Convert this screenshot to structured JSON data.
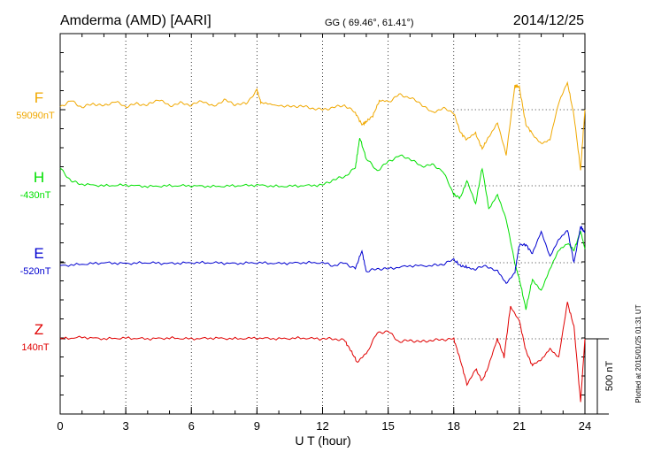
{
  "header": {
    "station": "Amderma (AMD)  [AARI]",
    "coords": "GG ( 69.46°,  61.41°)",
    "date": "2014/12/25"
  },
  "footer": {
    "plotted": "Plotted at 2015/01/25 01:31  UT"
  },
  "chart_data": {
    "type": "line",
    "xlabel": "U T (hour)",
    "xlim": [
      0,
      24
    ],
    "xticks": [
      "0",
      "3",
      "6",
      "9",
      "12",
      "15",
      "18",
      "21",
      "24"
    ],
    "scale_bar": {
      "label": "500 nT",
      "value": 500
    },
    "grid": true,
    "series": [
      {
        "name": "F",
        "baseline_label": "59090nT",
        "color": "#f0a800",
        "points": [
          [
            0,
            20
          ],
          [
            0.5,
            60
          ],
          [
            1,
            15
          ],
          [
            1.5,
            40
          ],
          [
            2,
            25
          ],
          [
            2.5,
            55
          ],
          [
            3,
            20
          ],
          [
            3.5,
            40
          ],
          [
            4,
            30
          ],
          [
            4.5,
            70
          ],
          [
            5,
            25
          ],
          [
            5.5,
            45
          ],
          [
            6,
            30
          ],
          [
            6.5,
            60
          ],
          [
            7,
            20
          ],
          [
            7.5,
            65
          ],
          [
            8,
            35
          ],
          [
            8.5,
            40
          ],
          [
            9,
            130
          ],
          [
            9.2,
            40
          ],
          [
            10,
            30
          ],
          [
            10.5,
            20
          ],
          [
            11,
            25
          ],
          [
            11.5,
            10
          ],
          [
            12,
            0
          ],
          [
            12.5,
            15
          ],
          [
            13,
            30
          ],
          [
            13.5,
            -20
          ],
          [
            13.8,
            -100
          ],
          [
            14,
            -80
          ],
          [
            14.3,
            -40
          ],
          [
            14.6,
            60
          ],
          [
            15,
            50
          ],
          [
            15.5,
            100
          ],
          [
            16,
            80
          ],
          [
            16.5,
            40
          ],
          [
            17,
            -20
          ],
          [
            17.5,
            10
          ],
          [
            18,
            -20
          ],
          [
            18.3,
            -150
          ],
          [
            18.6,
            -200
          ],
          [
            19,
            -160
          ],
          [
            19.3,
            -260
          ],
          [
            19.6,
            -180
          ],
          [
            20,
            -80
          ],
          [
            20.4,
            -300
          ],
          [
            20.8,
            160
          ],
          [
            21,
            150
          ],
          [
            21.3,
            -100
          ],
          [
            21.6,
            -160
          ],
          [
            22,
            -220
          ],
          [
            22.4,
            -200
          ],
          [
            22.8,
            40
          ],
          [
            23.2,
            180
          ],
          [
            23.5,
            -40
          ],
          [
            23.8,
            -400
          ],
          [
            24,
            0
          ]
        ]
      },
      {
        "name": "H",
        "baseline_label": "-430nT",
        "color": "#00e000",
        "points": [
          [
            0,
            120
          ],
          [
            0.5,
            30
          ],
          [
            1,
            10
          ],
          [
            2,
            0
          ],
          [
            3,
            5
          ],
          [
            4,
            -5
          ],
          [
            5,
            0
          ],
          [
            6,
            0
          ],
          [
            7,
            -5
          ],
          [
            8,
            0
          ],
          [
            9,
            5
          ],
          [
            10,
            -5
          ],
          [
            11,
            0
          ],
          [
            12,
            5
          ],
          [
            12.5,
            40
          ],
          [
            13,
            60
          ],
          [
            13.5,
            120
          ],
          [
            13.7,
            320
          ],
          [
            14,
            180
          ],
          [
            14.5,
            100
          ],
          [
            15,
            160
          ],
          [
            15.5,
            200
          ],
          [
            16,
            180
          ],
          [
            16.5,
            130
          ],
          [
            17,
            140
          ],
          [
            17.5,
            100
          ],
          [
            18,
            -60
          ],
          [
            18.3,
            -80
          ],
          [
            18.6,
            30
          ],
          [
            19,
            -120
          ],
          [
            19.3,
            120
          ],
          [
            19.6,
            -150
          ],
          [
            20,
            -60
          ],
          [
            20.4,
            -230
          ],
          [
            20.8,
            -520
          ],
          [
            21,
            -620
          ],
          [
            21.3,
            -820
          ],
          [
            21.6,
            -620
          ],
          [
            22,
            -700
          ],
          [
            22.4,
            -560
          ],
          [
            22.8,
            -430
          ],
          [
            23.2,
            -380
          ],
          [
            23.5,
            -430
          ],
          [
            23.8,
            -300
          ],
          [
            24,
            -420
          ]
        ]
      },
      {
        "name": "E",
        "baseline_label": "-520nT",
        "color": "#0000d0",
        "points": [
          [
            0,
            -20
          ],
          [
            1,
            -10
          ],
          [
            2,
            0
          ],
          [
            3,
            -5
          ],
          [
            4,
            0
          ],
          [
            5,
            -5
          ],
          [
            6,
            0
          ],
          [
            7,
            0
          ],
          [
            8,
            -5
          ],
          [
            9,
            0
          ],
          [
            10,
            -5
          ],
          [
            11,
            0
          ],
          [
            12,
            0
          ],
          [
            12.5,
            -20
          ],
          [
            13,
            0
          ],
          [
            13.5,
            -40
          ],
          [
            13.8,
            80
          ],
          [
            14,
            -60
          ],
          [
            14.5,
            -40
          ],
          [
            15,
            -40
          ],
          [
            16,
            -20
          ],
          [
            17,
            -20
          ],
          [
            17.5,
            -10
          ],
          [
            18,
            20
          ],
          [
            18.3,
            -20
          ],
          [
            18.6,
            -30
          ],
          [
            19,
            -40
          ],
          [
            19.5,
            -20
          ],
          [
            20,
            -60
          ],
          [
            20.4,
            -140
          ],
          [
            20.8,
            -60
          ],
          [
            21,
            120
          ],
          [
            21.3,
            120
          ],
          [
            21.6,
            60
          ],
          [
            22,
            200
          ],
          [
            22.4,
            40
          ],
          [
            22.8,
            160
          ],
          [
            23.2,
            220
          ],
          [
            23.5,
            0
          ],
          [
            23.8,
            240
          ],
          [
            24,
            200
          ]
        ]
      },
      {
        "name": "Z",
        "baseline_label": "140nT",
        "color": "#e00000",
        "points": [
          [
            0,
            0
          ],
          [
            1,
            10
          ],
          [
            2,
            0
          ],
          [
            3,
            5
          ],
          [
            4,
            0
          ],
          [
            5,
            5
          ],
          [
            6,
            0
          ],
          [
            7,
            5
          ],
          [
            8,
            0
          ],
          [
            9,
            5
          ],
          [
            10,
            0
          ],
          [
            11,
            5
          ],
          [
            12,
            0
          ],
          [
            12.5,
            0
          ],
          [
            13,
            -10
          ],
          [
            13.3,
            -80
          ],
          [
            13.6,
            -160
          ],
          [
            14,
            -100
          ],
          [
            14.5,
            40
          ],
          [
            15,
            50
          ],
          [
            15.5,
            -20
          ],
          [
            16,
            -10
          ],
          [
            16.5,
            -20
          ],
          [
            17,
            -10
          ],
          [
            17.5,
            -5
          ],
          [
            18,
            0
          ],
          [
            18.3,
            -140
          ],
          [
            18.6,
            -300
          ],
          [
            19,
            -200
          ],
          [
            19.3,
            -280
          ],
          [
            19.6,
            -180
          ],
          [
            20,
            0
          ],
          [
            20.3,
            -120
          ],
          [
            20.6,
            220
          ],
          [
            21,
            120
          ],
          [
            21.3,
            -80
          ],
          [
            21.6,
            -180
          ],
          [
            22,
            -140
          ],
          [
            22.4,
            -60
          ],
          [
            22.8,
            -120
          ],
          [
            23.2,
            240
          ],
          [
            23.5,
            80
          ],
          [
            23.8,
            -420
          ],
          [
            24,
            0
          ]
        ]
      }
    ]
  }
}
